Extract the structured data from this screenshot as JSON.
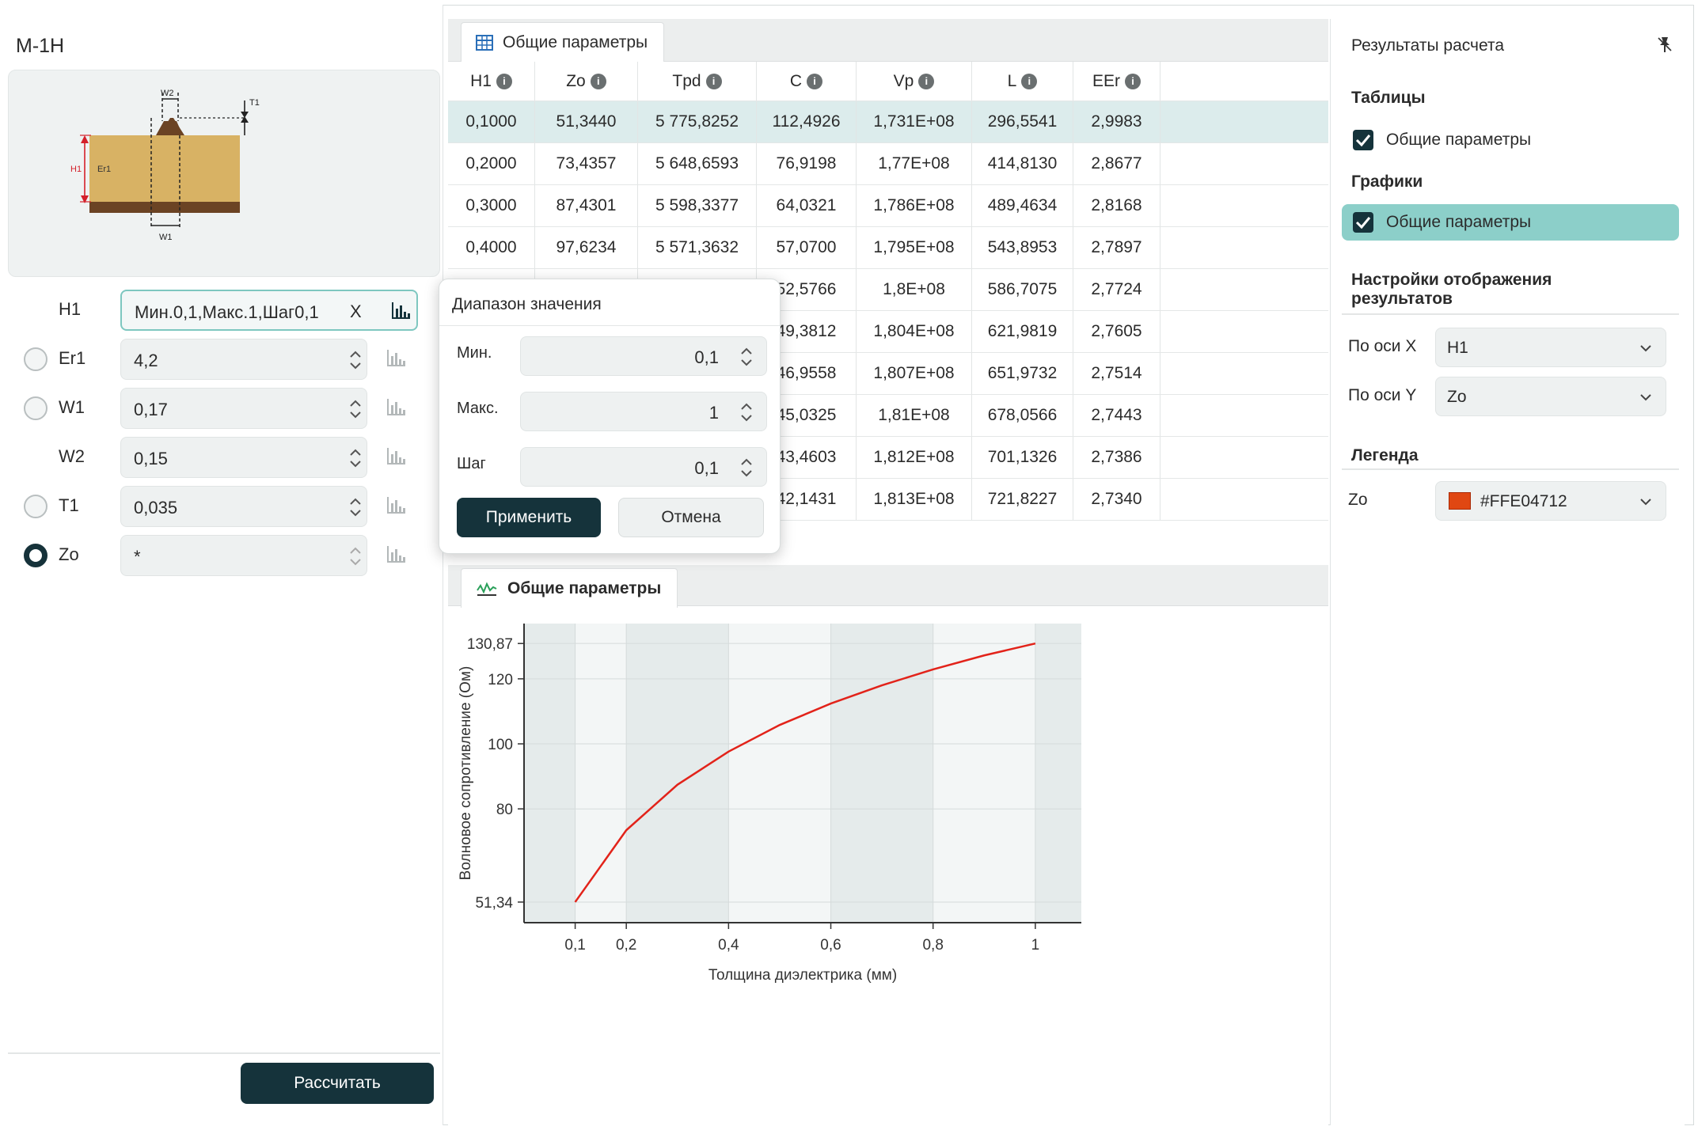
{
  "left_panel": {
    "model_title": "M-1H",
    "schematic_labels": {
      "w2": "W2",
      "t1": "T1",
      "h1": "H1",
      "er1": "Er1",
      "w1": "W1"
    },
    "params": [
      {
        "name": "H1",
        "value": "Мин.0,1,Макс.1,Шаг0,1",
        "clear": "X",
        "radio": "none"
      },
      {
        "name": "Er1",
        "value": "4,2",
        "radio": "off"
      },
      {
        "name": "W1",
        "value": "0,17",
        "radio": "off"
      },
      {
        "name": "W2",
        "value": "0,15",
        "radio": "none"
      },
      {
        "name": "T1",
        "value": "0,035",
        "radio": "off"
      },
      {
        "name": "Zo",
        "value": "*",
        "radio": "on"
      }
    ],
    "calculate_label": "Рассчитать"
  },
  "table_tab": {
    "title": "Общие параметры"
  },
  "table": {
    "columns": [
      "H1",
      "Zo",
      "Tpd",
      "C",
      "Vp",
      "L",
      "EEr"
    ],
    "rows": [
      [
        "0,1000",
        "51,3440",
        "5 775,8252",
        "112,4926",
        "1,731E+08",
        "296,5541",
        "2,9983"
      ],
      [
        "0,2000",
        "73,4357",
        "5 648,6593",
        "76,9198",
        "1,77E+08",
        "414,8130",
        "2,8677"
      ],
      [
        "0,3000",
        "87,4301",
        "5 598,3377",
        "64,0321",
        "1,786E+08",
        "489,4634",
        "2,8168"
      ],
      [
        "0,4000",
        "97,6234",
        "5 571,3632",
        "57,0700",
        "1,795E+08",
        "543,8953",
        "2,7897"
      ],
      [
        "",
        "",
        "",
        "52,5766",
        "1,8E+08",
        "586,7075",
        "2,7724"
      ],
      [
        "",
        "",
        "",
        "49,3812",
        "1,804E+08",
        "621,9819",
        "2,7605"
      ],
      [
        "",
        "",
        "",
        "46,9558",
        "1,807E+08",
        "651,9732",
        "2,7514"
      ],
      [
        "",
        "",
        "",
        "45,0325",
        "1,81E+08",
        "678,0566",
        "2,7443"
      ],
      [
        "",
        "",
        "",
        "43,4603",
        "1,812E+08",
        "701,1326",
        "2,7386"
      ],
      [
        "",
        "",
        "",
        "42,1431",
        "1,813E+08",
        "721,8227",
        "2,7340"
      ]
    ],
    "selected_row": 0
  },
  "popup": {
    "title": "Диапазон значения",
    "min_label": "Мин.",
    "min_value": "0,1",
    "max_label": "Макс.",
    "max_value": "1",
    "step_label": "Шаг",
    "step_value": "0,1",
    "apply_label": "Применить",
    "cancel_label": "Отмена"
  },
  "chart_tab": {
    "title": "Общие параметры"
  },
  "chart_data": {
    "type": "line",
    "title": "",
    "xlabel": "Толщина диэлектрика (мм)",
    "ylabel": "Волновое сопротивление (Ом)",
    "xlim": [
      0,
      1.09
    ],
    "ylim": [
      45,
      137
    ],
    "x_ticks": [
      0.1,
      0.2,
      0.4,
      0.6,
      0.8,
      1
    ],
    "x_tick_labels": [
      "0,1",
      "0,2",
      "0,4",
      "0,6",
      "0,8",
      "1"
    ],
    "y_ticks": [
      51.34,
      80,
      100,
      120,
      130.87
    ],
    "y_tick_labels": [
      "51,34",
      "80",
      "100",
      "120",
      "130,87"
    ],
    "x": [
      0.1,
      0.2,
      0.3,
      0.4,
      0.5,
      0.6,
      0.7,
      0.8,
      0.9,
      1.0
    ],
    "series": [
      {
        "values": [
          51.34,
          73.44,
          87.43,
          97.62,
          105.8,
          112.4,
          118.0,
          122.9,
          127.2,
          130.87
        ],
        "color": "#e2231a"
      }
    ],
    "grid": true
  },
  "right_panel": {
    "title": "Результаты расчета",
    "tables_label": "Таблицы",
    "tables_item": "Общие параметры",
    "graphs_label": "Графики",
    "graphs_item": "Общие параметры",
    "display_settings_line1": "Настройки отображения",
    "display_settings_line2": "результатов",
    "x_axis_label": "По оси X",
    "x_axis_value": "H1",
    "y_axis_label": "По оси Y",
    "y_axis_value": "Zo",
    "legend_label": "Легенда",
    "legend_series": "Zo",
    "legend_color": "#FFE04712"
  }
}
